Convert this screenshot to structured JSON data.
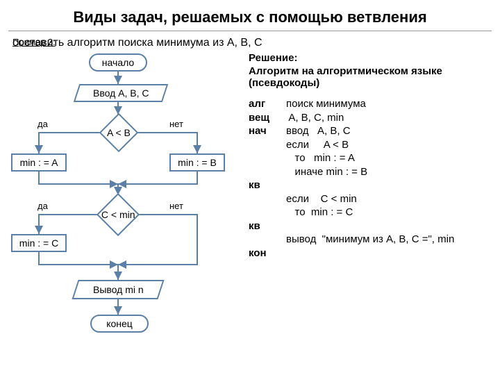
{
  "title": "Виды задач, решаемых с помощью ветвления",
  "subtitle_label": "Пример 3:",
  "subtitle_rest": " составить алгоритм поиска минимума из A, B, C",
  "solution_heading": "Решение:",
  "solution_sub": " Алгоритм на алгоритмическом языке (псевдокоды)",
  "pseudo": {
    "rows": [
      {
        "kw": "алг",
        "body": "поиск минимума"
      },
      {
        "kw": "вещ",
        "body": " A, B, C, min"
      },
      {
        "kw": "нач",
        "body": "ввод   A, B, C"
      },
      {
        "kw": "",
        "body": "если     A < B"
      },
      {
        "kw": "",
        "body": "   то   min : = A"
      },
      {
        "kw": "",
        "body": "   иначе min : = B"
      },
      {
        "kw": "кв",
        "body": ""
      },
      {
        "kw": "",
        "body": "если    C < min"
      },
      {
        "kw": "",
        "body": "   то  min : = C"
      },
      {
        "kw": "кв",
        "body": ""
      },
      {
        "kw": "",
        "body": "вывод  \"минимум из A, B, C =\", min"
      },
      {
        "kw": "кон",
        "body": ""
      }
    ]
  },
  "flow": {
    "border_color": "#5b7fa6",
    "arrow_color": "#5b7fa6",
    "labels": {
      "yes": "да",
      "no": "нет"
    },
    "nodes": {
      "start": "начало",
      "input": "Ввод  A, B, C",
      "cond1": "A < B",
      "assignA": "min : = A",
      "assignB": "min : = B",
      "cond2": "C < min",
      "assignC": "min : = C",
      "output": "Вывод  mi n",
      "end": "конец"
    }
  }
}
